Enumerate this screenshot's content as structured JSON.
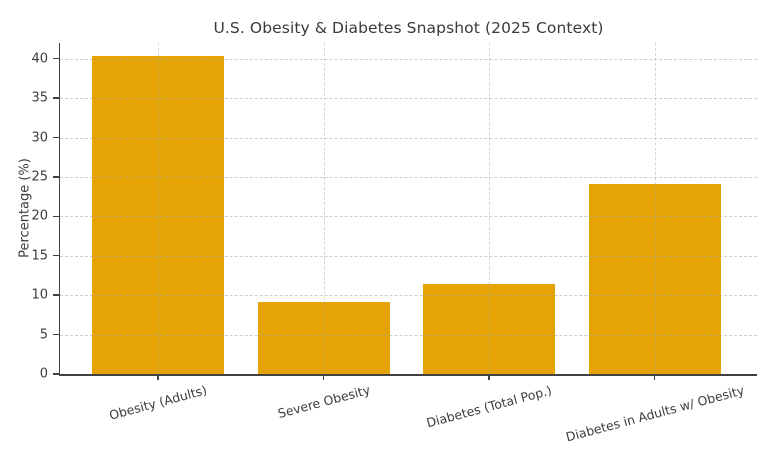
{
  "chart_data": {
    "type": "bar",
    "title": "U.S. Obesity & Diabetes Snapshot (2025 Context)",
    "xlabel": "",
    "ylabel": "Percentage (%)",
    "categories": [
      "Obesity (Adults)",
      "Severe Obesity",
      "Diabetes (Total Pop.)",
      "Diabetes in Adults w/ Obesity"
    ],
    "values": [
      40.3,
      9.2,
      11.4,
      24.1
    ],
    "ylim": [
      0,
      42
    ],
    "yticks": [
      0,
      5,
      10,
      15,
      20,
      25,
      30,
      35,
      40
    ],
    "grid": "dashed horizontal and vertical, drawn faintly over bars",
    "legend": "none",
    "x_tick_label_rotation_deg": 15,
    "bar_color": "#e5a304",
    "spine_color": "#424242",
    "text_color": "#3c3c3c",
    "background_color": "#ffffff"
  }
}
